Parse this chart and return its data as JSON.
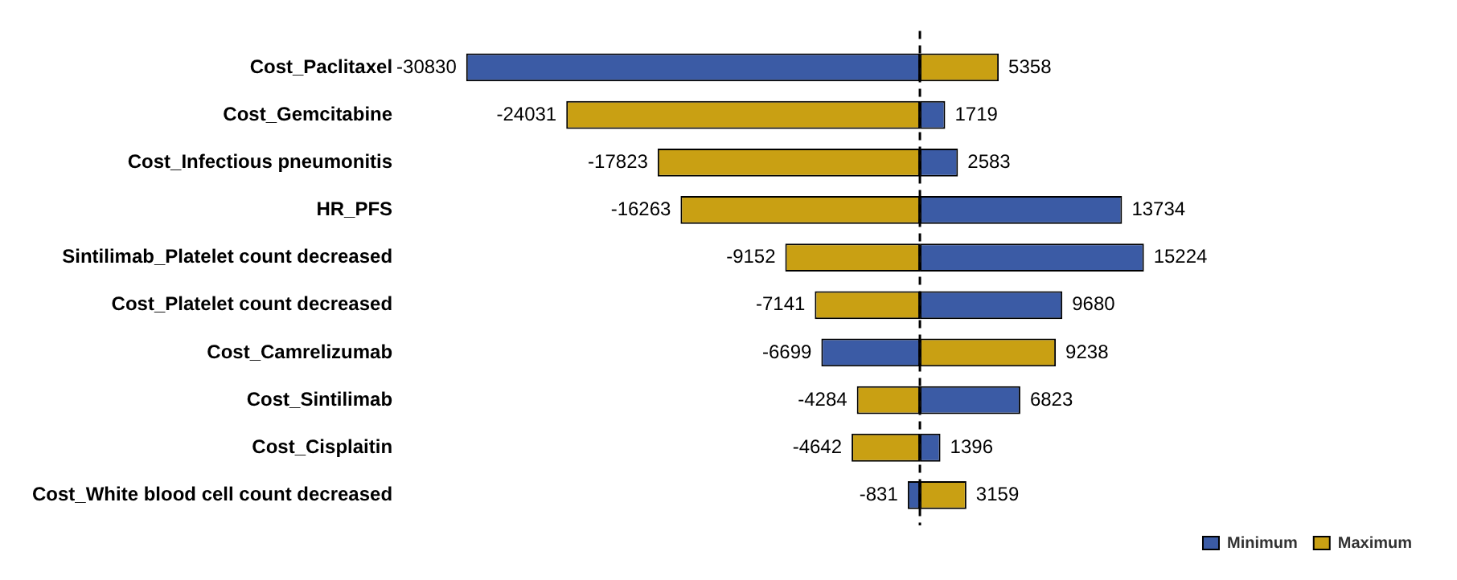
{
  "chart_data": {
    "type": "bar",
    "orientation": "horizontal",
    "stacked": true,
    "categories": [
      "Cost_Paclitaxel",
      "Cost_Gemcitabine",
      "Cost_Infectious pneumonitis",
      "HR_PFS",
      "Sintilimab_Platelet count decreased",
      "Cost_Platelet count decreased",
      "Cost_Camrelizumab",
      "Cost_Sintilimab",
      "Cost_Cisplaitin",
      "Cost_White blood cell count decreased"
    ],
    "series": [
      {
        "name": "Minimum",
        "color": "#3b5ba5",
        "values": [
          -30830,
          1719,
          2583,
          13734,
          15224,
          9680,
          -6699,
          6823,
          1396,
          -831
        ]
      },
      {
        "name": "Maximum",
        "color": "#c9a013",
        "values": [
          5358,
          -24031,
          -17823,
          -16263,
          -9152,
          -7141,
          9238,
          -4284,
          -4642,
          3159
        ]
      }
    ],
    "data_labels": true,
    "legend": "bottom right",
    "grid": false,
    "tick_labels": "y",
    "ref_lines": [
      {
        "axis": "x",
        "value": 0,
        "line_style": "dashed",
        "color": "#000000"
      }
    ]
  }
}
